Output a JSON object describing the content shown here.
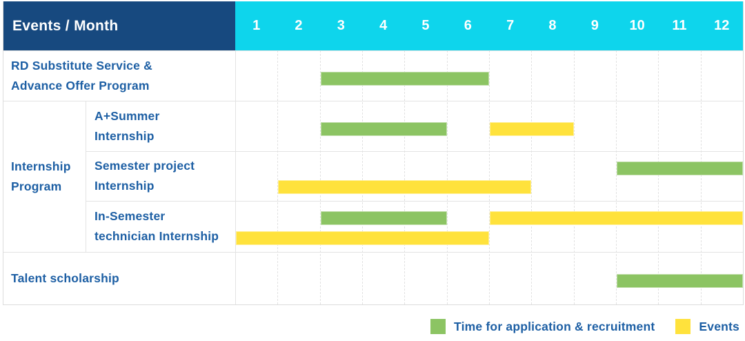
{
  "colors": {
    "header_bg": "#17497f",
    "months_bg": "#0ed5ec",
    "header_text": "#ffffff",
    "label_text": "#1d5fa4",
    "application": "#8cc463",
    "events": "#ffe23c",
    "grid_line": "#e1e1e1",
    "border": "#dcdcdc"
  },
  "header": {
    "title": "Events / Month",
    "months": [
      "1",
      "2",
      "3",
      "4",
      "5",
      "6",
      "7",
      "8",
      "9",
      "10",
      "11",
      "12"
    ]
  },
  "legend": {
    "items": [
      {
        "key": "application",
        "label": "Time for application & recruitment"
      },
      {
        "key": "events",
        "label": "Events"
      }
    ]
  },
  "chart_data": {
    "type": "gantt",
    "x_unit": "month",
    "x_range": [
      1,
      12
    ],
    "group_label": "Internship Program",
    "group_label_lines": [
      "Internship",
      "Program"
    ],
    "series_legend": [
      {
        "key": "application",
        "label": "Time for application & recruitment"
      },
      {
        "key": "events",
        "label": "Events"
      }
    ],
    "rows": [
      {
        "group": null,
        "label": "RD Substitute Service & Advance Offer Program",
        "label_lines": [
          "RD Substitute Service &",
          "Advance Offer Program"
        ],
        "bars": [
          {
            "series": "application",
            "start_month": 3,
            "end_month": 6,
            "lane": "single"
          }
        ]
      },
      {
        "group": "Internship Program",
        "label": "A+Summer Internship",
        "label_lines": [
          "A+Summer",
          "Internship"
        ],
        "bars": [
          {
            "series": "application",
            "start_month": 3,
            "end_month": 5,
            "lane": "single"
          },
          {
            "series": "events",
            "start_month": 7,
            "end_month": 8,
            "lane": "single"
          }
        ]
      },
      {
        "group": "Internship Program",
        "label": "Semester project Internship",
        "label_lines": [
          "Semester project",
          "Internship"
        ],
        "bars": [
          {
            "series": "application",
            "start_month": 10,
            "end_month": 12,
            "lane": "top"
          },
          {
            "series": "events",
            "start_month": 2,
            "end_month": 7,
            "lane": "bottom"
          }
        ]
      },
      {
        "group": "Internship Program",
        "label": "In-Semester technician Internship",
        "label_lines": [
          "In-Semester",
          "technician Internship"
        ],
        "bars": [
          {
            "series": "application",
            "start_month": 3,
            "end_month": 5,
            "lane": "top"
          },
          {
            "series": "events",
            "start_month": 7,
            "end_month": 12,
            "lane": "top"
          },
          {
            "series": "events",
            "start_month": 1,
            "end_month": 6,
            "lane": "bottom"
          }
        ]
      },
      {
        "group": null,
        "label": "Talent scholarship",
        "label_lines": [
          "Talent scholarship"
        ],
        "bars": [
          {
            "series": "application",
            "start_month": 10,
            "end_month": 12,
            "lane": "single"
          }
        ]
      }
    ]
  }
}
